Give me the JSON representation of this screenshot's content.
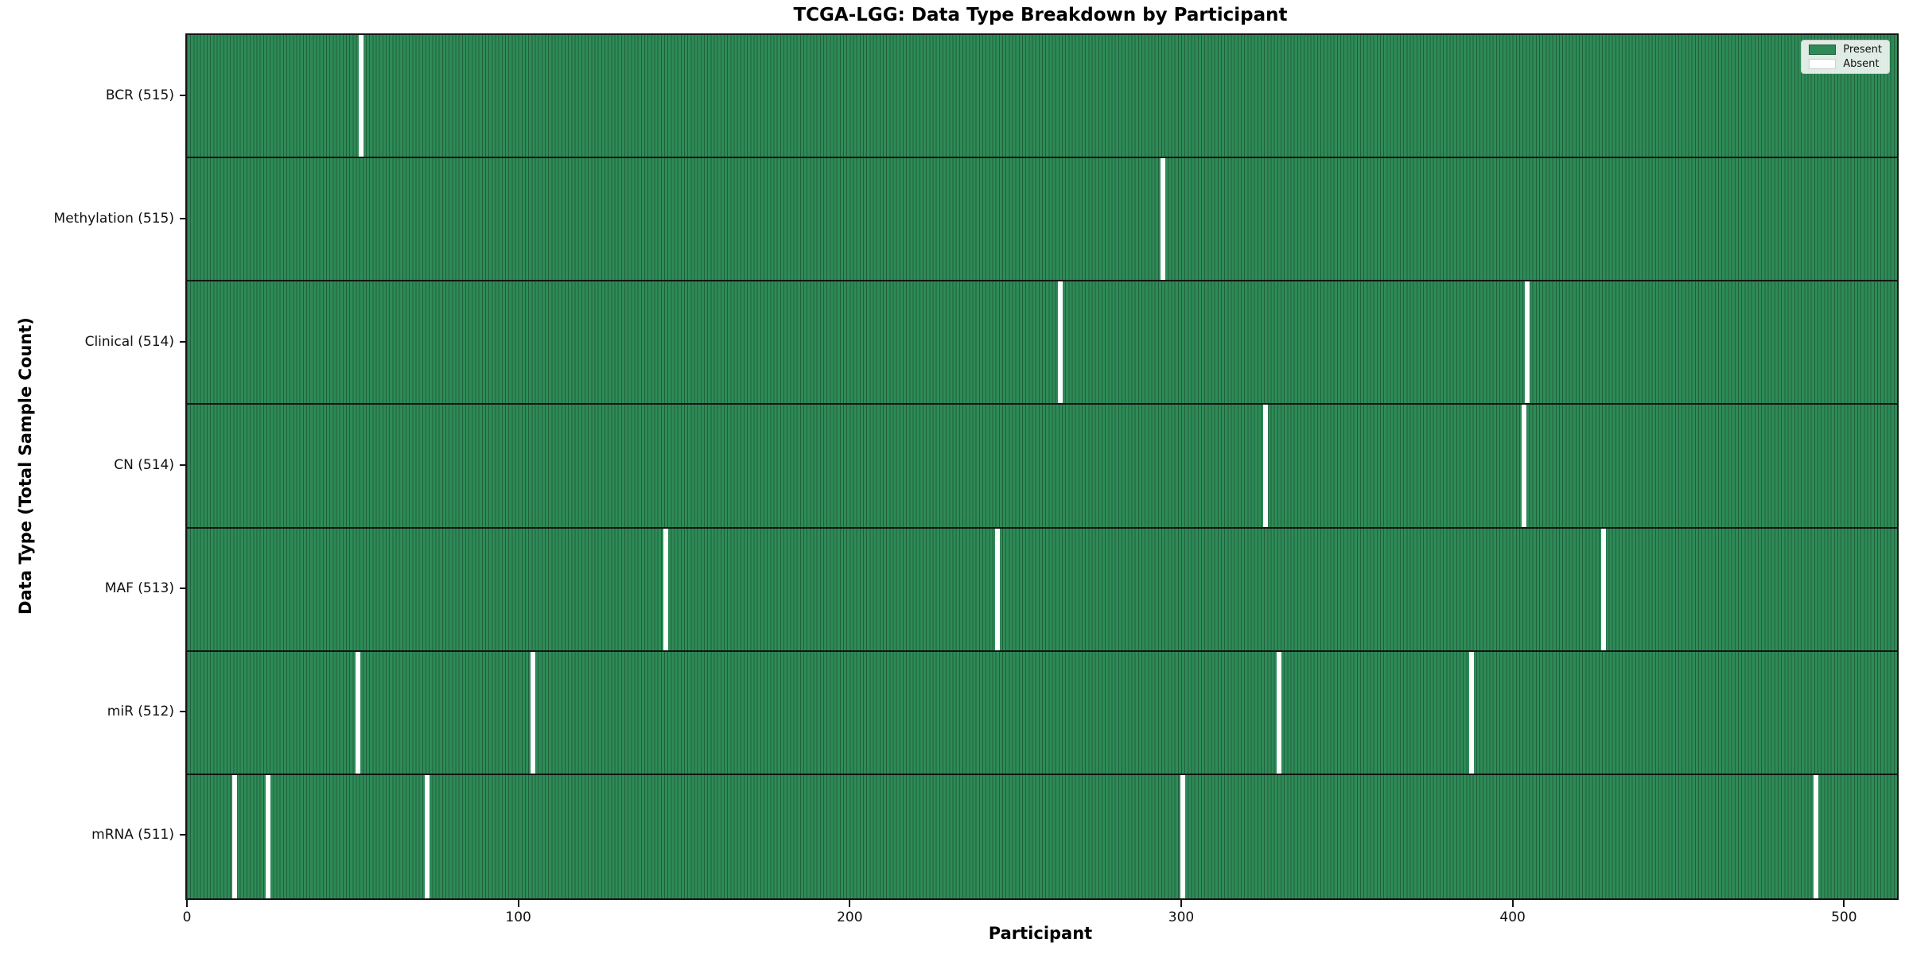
{
  "figure": {
    "title": "TCGA-LGG: Data Type Breakdown by Participant",
    "xlabel": "Participant",
    "ylabel": "Data Type (Total Sample Count)"
  },
  "legend": {
    "items": [
      {
        "name": "present",
        "label": "Present",
        "color": "#2e8b57",
        "border": "#20603c"
      },
      {
        "name": "absent",
        "label": "Absent",
        "color": "#ffffff",
        "border": "#cfcfcf"
      }
    ]
  },
  "chart_data": {
    "type": "heatmap",
    "title": "TCGA-LGG: Data Type Breakdown by Participant",
    "xlabel": "Participant",
    "ylabel": "Data Type (Total Sample Count)",
    "legend_position": "upper right",
    "grid": false,
    "n_participants": 516,
    "xlim": [
      0,
      516
    ],
    "x_ticks": [
      0,
      100,
      200,
      300,
      400,
      500
    ],
    "colors": {
      "present": "#2e8b57",
      "absent": "#ffffff",
      "cell_edge": "#20603c",
      "axis": "#141414"
    },
    "rows": [
      {
        "label": "BCR (515)",
        "data_type": "BCR",
        "present_count": 515,
        "absent_participants": [
          52
        ]
      },
      {
        "label": "Methylation (515)",
        "data_type": "Methylation",
        "present_count": 515,
        "absent_participants": [
          294
        ]
      },
      {
        "label": "Clinical (514)",
        "data_type": "Clinical",
        "present_count": 514,
        "absent_participants": [
          263,
          404
        ]
      },
      {
        "label": "CN (514)",
        "data_type": "CN",
        "present_count": 514,
        "absent_participants": [
          325,
          403
        ]
      },
      {
        "label": "MAF (513)",
        "data_type": "MAF",
        "present_count": 513,
        "absent_participants": [
          144,
          244,
          427
        ]
      },
      {
        "label": "miR (512)",
        "data_type": "miR",
        "present_count": 512,
        "absent_participants": [
          51,
          104,
          329,
          387
        ]
      },
      {
        "label": "mRNA (511)",
        "data_type": "mRNA",
        "present_count": 511,
        "absent_participants": [
          14,
          24,
          72,
          300,
          491
        ]
      }
    ]
  }
}
